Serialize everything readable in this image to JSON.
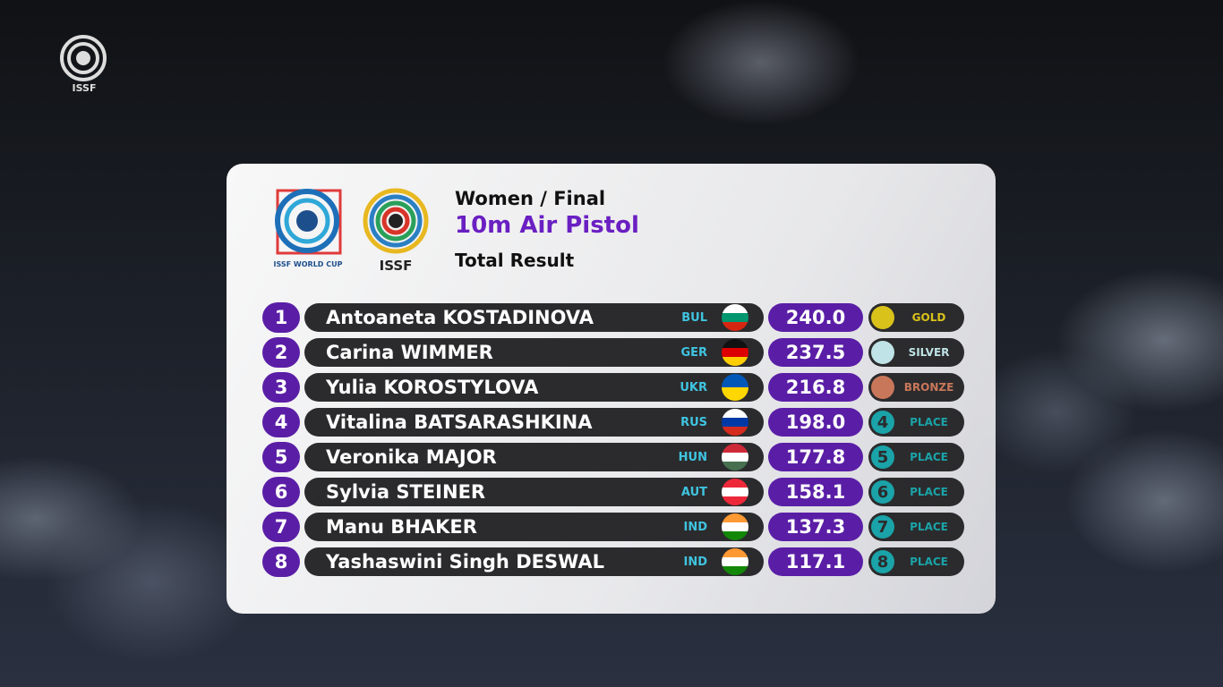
{
  "corner_logo": "ISSF",
  "header": {
    "logo_left": "ISSF WORLD CUP",
    "logo_right": "ISSF",
    "line1": "Women / Final",
    "line2": "10m Air Pistol",
    "line3": "Total Result"
  },
  "table": {
    "rows": [
      {
        "rank": "1",
        "name": "Antoaneta KOSTADINOVA",
        "country": "BUL",
        "flag": [
          "#ffffff",
          "#00966e",
          "#d62612"
        ],
        "score": "240.0",
        "badge": "GOLD",
        "badge_color": "#d9c21a"
      },
      {
        "rank": "2",
        "name": "Carina WIMMER",
        "country": "GER",
        "flag": [
          "#111111",
          "#dd0000",
          "#ffce00"
        ],
        "score": "237.5",
        "badge": "SILVER",
        "badge_color": "#bfe3e6"
      },
      {
        "rank": "3",
        "name": "Yulia KOROSTYLOVA",
        "country": "UKR",
        "flag": [
          "#0057b7",
          "#ffd700"
        ],
        "score": "216.8",
        "badge": "BRONZE",
        "badge_color": "#c9775a"
      },
      {
        "rank": "4",
        "name": "Vitalina BATSARASHKINA",
        "country": "RUS",
        "flag": [
          "#ffffff",
          "#0039a6",
          "#d52b1e"
        ],
        "score": "198.0",
        "badge": "PLACE",
        "badge_color": "#1aa3a8"
      },
      {
        "rank": "5",
        "name": "Veronika MAJOR",
        "country": "HUN",
        "flag": [
          "#ce2939",
          "#ffffff",
          "#477050"
        ],
        "score": "177.8",
        "badge": "PLACE",
        "badge_color": "#1aa3a8"
      },
      {
        "rank": "6",
        "name": "Sylvia STEINER",
        "country": "AUT",
        "flag": [
          "#ed2939",
          "#ffffff",
          "#ed2939"
        ],
        "score": "158.1",
        "badge": "PLACE",
        "badge_color": "#1aa3a8"
      },
      {
        "rank": "7",
        "name": "Manu BHAKER",
        "country": "IND",
        "flag": [
          "#ff9933",
          "#ffffff",
          "#138808"
        ],
        "score": "137.3",
        "badge": "PLACE",
        "badge_color": "#1aa3a8"
      },
      {
        "rank": "8",
        "name": "Yashaswini Singh DESWAL",
        "country": "IND",
        "flag": [
          "#ff9933",
          "#ffffff",
          "#138808"
        ],
        "score": "117.1",
        "badge": "PLACE",
        "badge_color": "#1aa3a8"
      }
    ]
  }
}
